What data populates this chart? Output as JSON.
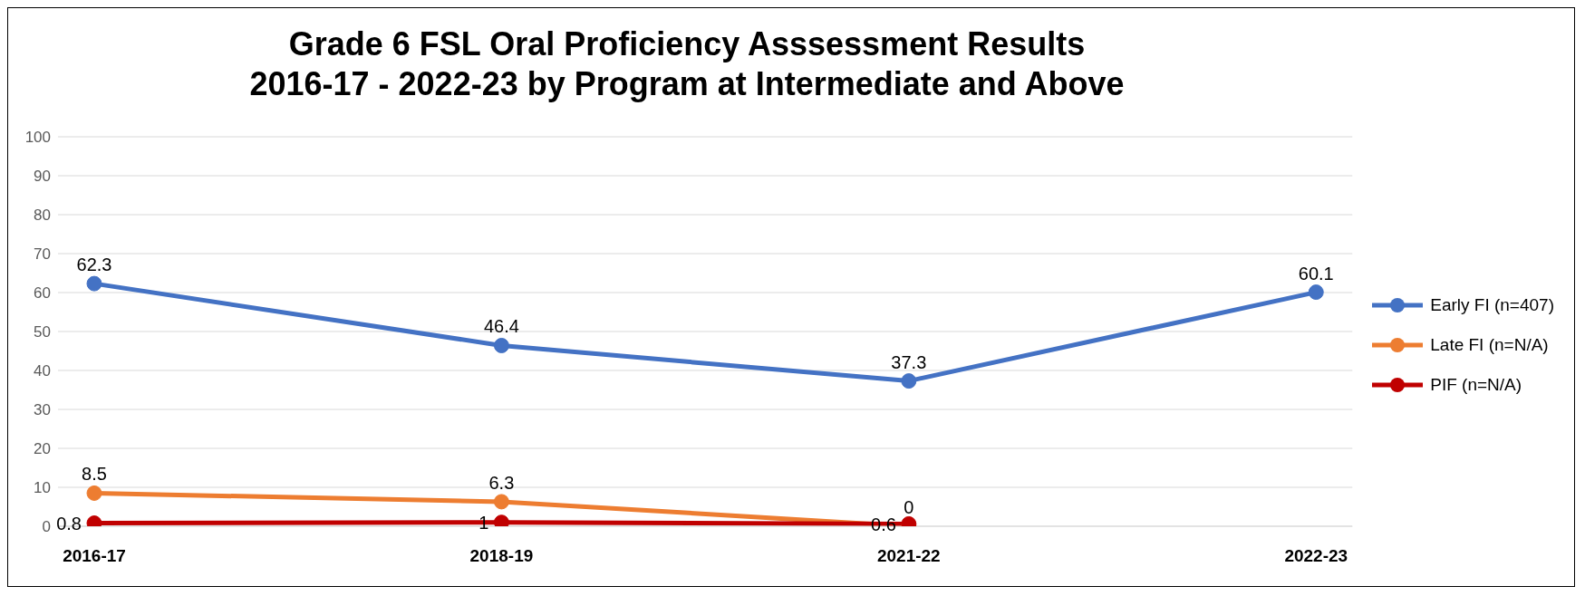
{
  "chart_data": {
    "type": "line",
    "title": "Grade 6 FSL Oral Proficiency Asssessment Results\n2016-17 - 2022-23 by Program at Intermediate and Above",
    "categories": [
      "2016-17",
      "2018-19",
      "2021-22",
      "2022-23"
    ],
    "series": [
      {
        "name": "Early FI (n=407)",
        "color": "#4472c4",
        "values": [
          62.3,
          46.4,
          37.3,
          60.1
        ]
      },
      {
        "name": "Late FI (n=N/A)",
        "color": "#ed7d31",
        "values": [
          8.5,
          6.3,
          0,
          null
        ]
      },
      {
        "name": "PIF (n=N/A)",
        "color": "#c00000",
        "values": [
          0.8,
          1,
          0.6,
          null
        ]
      }
    ],
    "ylim": [
      0,
      100
    ],
    "yticks": [
      0,
      10,
      20,
      30,
      40,
      50,
      60,
      70,
      80,
      90,
      100
    ],
    "grid": "y",
    "legend": "right",
    "marker": "circle",
    "line_style": "solid",
    "data_labels": true
  }
}
